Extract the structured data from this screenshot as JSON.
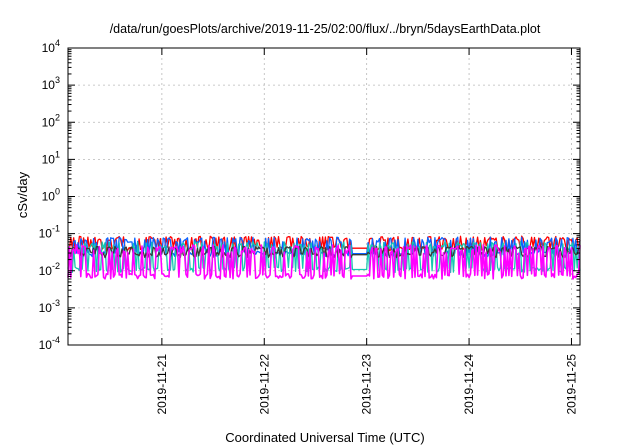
{
  "chart_data": {
    "type": "line",
    "title": "/data/run/goesPlots/archive/2019-11-25/02:00/flux/../bryn/5daysEarthData.plot",
    "xlabel": "Coordinated Universal Time (UTC)",
    "ylabel": "cSv/day",
    "y_scale": "log",
    "ylim": [
      0.0001,
      10000
    ],
    "xlim": [
      "2019-11-20 02:00",
      "2019-11-25 02:00"
    ],
    "grid": true,
    "legend": "none",
    "y_ticks": [
      {
        "base": "10",
        "exp": "-4",
        "value": 0.0001
      },
      {
        "base": "10",
        "exp": "-3",
        "value": 0.001
      },
      {
        "base": "10",
        "exp": "-2",
        "value": 0.01
      },
      {
        "base": "10",
        "exp": "-1",
        "value": 0.1
      },
      {
        "base": "10",
        "exp": "0",
        "value": 1
      },
      {
        "base": "10",
        "exp": "1",
        "value": 10
      },
      {
        "base": "10",
        "exp": "2",
        "value": 100
      },
      {
        "base": "10",
        "exp": "3",
        "value": 1000
      },
      {
        "base": "10",
        "exp": "4",
        "value": 10000
      }
    ],
    "x_ticks": [
      {
        "label": "2019-11-21",
        "value": "2019-11-21 00:00"
      },
      {
        "label": "2019-11-22",
        "value": "2019-11-22 00:00"
      },
      {
        "label": "2019-11-23",
        "value": "2019-11-23 00:00"
      },
      {
        "label": "2019-11-24",
        "value": "2019-11-24 00:00"
      },
      {
        "label": "2019-11-25",
        "value": "2019-11-25 00:00"
      }
    ],
    "series": [
      {
        "color": "#ff0000",
        "baseline": 0.045,
        "peak": 0.085
      },
      {
        "color": "#0a62ff",
        "baseline": 0.032,
        "peak": 0.08
      },
      {
        "color": "#16c8b0",
        "baseline": 0.012,
        "peak": 0.06
      },
      {
        "color": "#3a3a3a",
        "baseline": 0.03,
        "peak": 0.045
      },
      {
        "color": "#ff00ff",
        "baseline": 0.008,
        "peak": 0.05
      }
    ]
  }
}
